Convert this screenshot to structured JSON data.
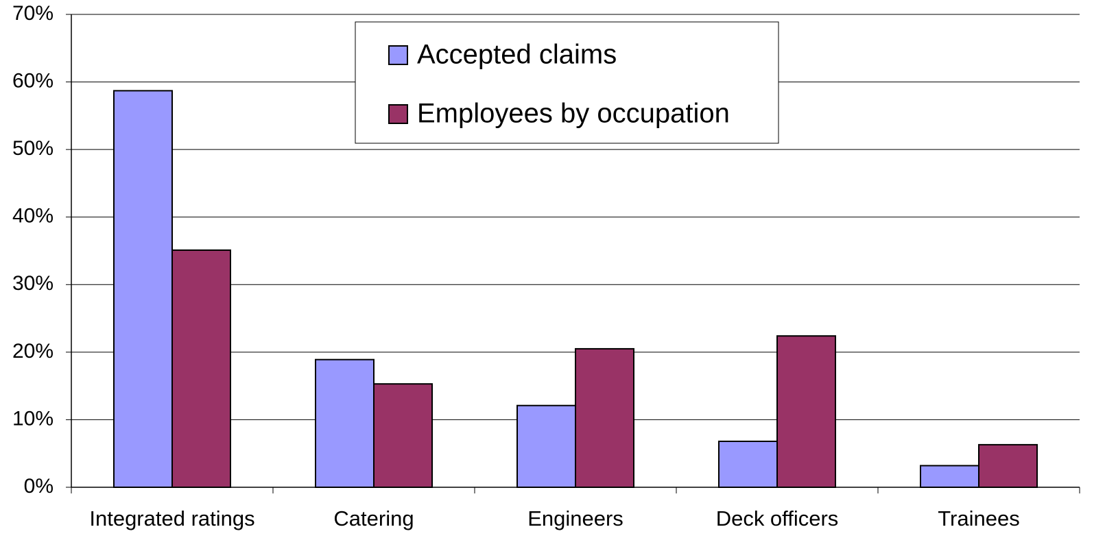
{
  "chart_data": {
    "type": "bar",
    "categories": [
      "Integrated ratings",
      "Catering",
      "Engineers",
      "Deck officers",
      "Trainees"
    ],
    "series": [
      {
        "name": "Accepted claims",
        "color": "#9999ff",
        "values": [
          58.7,
          18.9,
          12.1,
          6.8,
          3.2
        ]
      },
      {
        "name": "Employees by occupation",
        "color": "#993366",
        "values": [
          35.1,
          15.3,
          20.5,
          22.4,
          6.3
        ]
      }
    ],
    "ylim": [
      0,
      70
    ],
    "yticks": [
      {
        "value": 0,
        "label": "0%"
      },
      {
        "value": 10,
        "label": "10%"
      },
      {
        "value": 20,
        "label": "20%"
      },
      {
        "value": 30,
        "label": "30%"
      },
      {
        "value": 40,
        "label": "40%"
      },
      {
        "value": 50,
        "label": "50%"
      },
      {
        "value": 60,
        "label": "60%"
      },
      {
        "value": 70,
        "label": "70%"
      }
    ],
    "grid": true,
    "legend": "top"
  }
}
